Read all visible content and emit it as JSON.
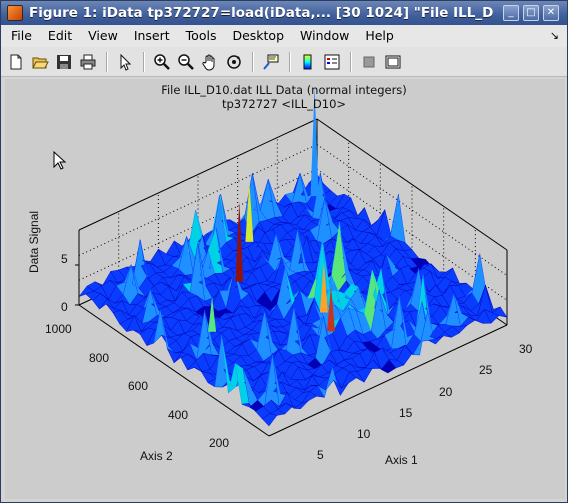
{
  "window": {
    "title": "Figure 1: iData tp372727=load(iData,... [30  1024] \"File ILL_D",
    "buttons": [
      "minimize",
      "maximize",
      "close"
    ]
  },
  "menubar": {
    "items": [
      "File",
      "Edit",
      "View",
      "Insert",
      "Tools",
      "Desktop",
      "Window",
      "Help"
    ],
    "dock_arrow": "↘"
  },
  "toolbar": {
    "buttons": [
      "new-figure",
      "open-file",
      "save-figure",
      "print-figure",
      "edit-plot",
      "zoom-in",
      "zoom-out",
      "pan",
      "rotate-3d",
      "data-cursor",
      "insert-colorbar",
      "insert-legend",
      "hide-plot-tools",
      "show-plot-tools"
    ]
  },
  "plot": {
    "title_line1": "File ILL_D10.dat ILL Data (normal integers)",
    "title_line2": "tp372727 <ILL_D10>",
    "zlabel": "Data Signal",
    "xlabel": "Axis 1",
    "ylabel": "Axis 2",
    "z_ticks": [
      "5",
      "0"
    ],
    "axis2_ticks": [
      "1000",
      "800",
      "600",
      "400",
      "200"
    ],
    "axis1_ticks": [
      "5",
      "10",
      "15",
      "20",
      "25",
      "30"
    ],
    "colormap": [
      "#0000b4",
      "#0a3cff",
      "#1e90ff",
      "#00d2e6",
      "#5ae67a",
      "#d2e632",
      "#ffa02a",
      "#c8321e",
      "#8c1414"
    ]
  }
}
